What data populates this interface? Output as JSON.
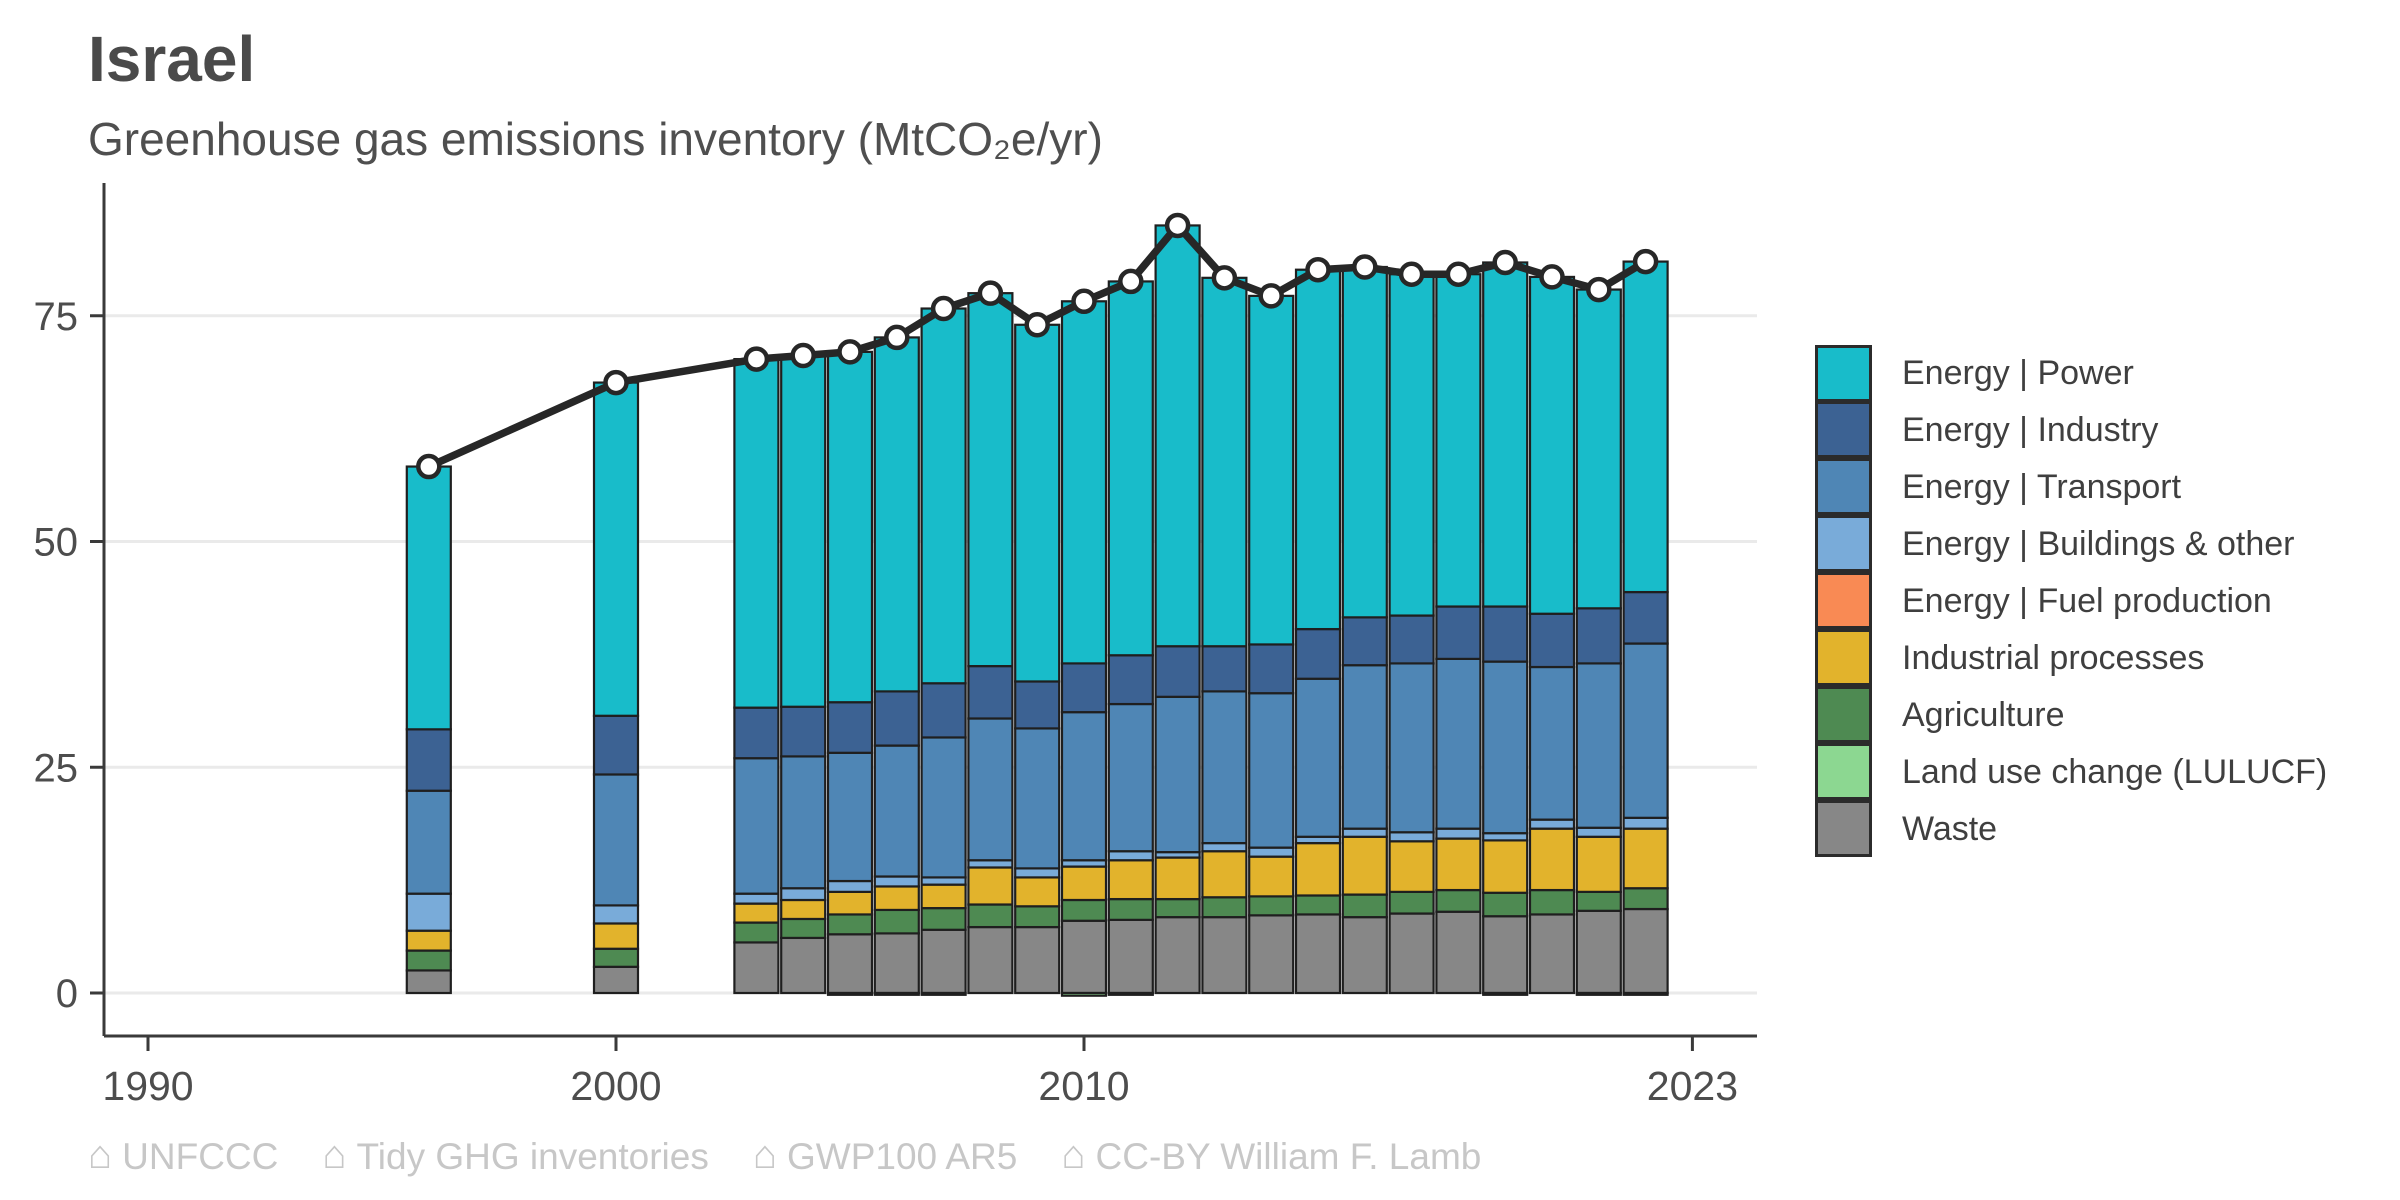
{
  "header": {
    "title": "Israel",
    "subtitle": "Greenhouse gas emissions inventory (MtCO₂e/yr)"
  },
  "chart_data": {
    "type": "bar",
    "subtype": "stacked-bars-with-total-line",
    "title": "Israel",
    "subtitle": "Greenhouse gas emissions inventory (MtCO₂e/yr)",
    "xlabel": "",
    "ylabel": "MtCO₂e/yr",
    "x_ticks": [
      1990,
      2000,
      2010,
      2023
    ],
    "y_ticks": [
      0,
      25,
      50,
      75
    ],
    "xlim": [
      1988.6,
      2024.3
    ],
    "ylim": [
      0,
      90
    ],
    "grid": "horizontal",
    "legend_position": "right",
    "line_color": "#272727",
    "point_fill": "#ffffff",
    "years": [
      1996,
      2000,
      2003,
      2004,
      2005,
      2006,
      2007,
      2008,
      2009,
      2010,
      2011,
      2012,
      2013,
      2014,
      2015,
      2016,
      2017,
      2018,
      2019,
      2020,
      2021,
      2022
    ],
    "series": [
      {
        "name": "Energy | Power",
        "color": "#18bcca",
        "values": [
          29.1,
          36.9,
          38.6,
          38.9,
          38.8,
          39.2,
          41.5,
          41.3,
          39.5,
          40.1,
          41.4,
          46.6,
          40.8,
          38.6,
          39.8,
          38.8,
          37.8,
          36.8,
          38.1,
          37.3,
          35.3,
          36.6
        ]
      },
      {
        "name": "Energy | Industry",
        "color": "#3c6293",
        "values": [
          6.8,
          6.5,
          5.6,
          5.5,
          5.6,
          6.0,
          6.0,
          5.8,
          5.2,
          5.4,
          5.4,
          5.6,
          5.0,
          5.4,
          5.5,
          5.3,
          5.3,
          5.8,
          6.1,
          5.9,
          6.1,
          5.7
        ]
      },
      {
        "name": "Energy | Transport",
        "color": "#4f86b5",
        "values": [
          11.4,
          14.5,
          15.0,
          14.6,
          14.2,
          14.5,
          15.5,
          15.7,
          15.5,
          16.4,
          16.3,
          17.2,
          16.8,
          17.1,
          17.5,
          18.1,
          18.7,
          18.8,
          19.0,
          16.9,
          18.2,
          19.3
        ]
      },
      {
        "name": "Energy | Buildings & other",
        "color": "#79abd9",
        "values": [
          4.1,
          2.0,
          1.1,
          1.3,
          1.2,
          1.1,
          0.8,
          0.8,
          1.0,
          0.7,
          1.0,
          0.6,
          0.9,
          1.0,
          0.7,
          0.9,
          1.0,
          1.1,
          0.8,
          1.0,
          1.0,
          1.2
        ]
      },
      {
        "name": "Energy | Fuel production",
        "color": "#f98a54",
        "values": [
          0,
          0,
          0,
          0,
          0,
          0,
          0,
          0,
          0,
          0,
          0,
          0,
          0,
          0,
          0,
          0,
          0,
          0,
          0,
          0,
          0,
          0
        ]
      },
      {
        "name": "Industrial processes",
        "color": "#e2b32c",
        "values": [
          2.2,
          2.8,
          2.1,
          2.1,
          2.5,
          2.6,
          2.6,
          4.1,
          3.2,
          3.7,
          4.3,
          4.6,
          5.1,
          4.4,
          5.8,
          6.4,
          5.6,
          5.7,
          5.8,
          6.8,
          6.1,
          6.6
        ]
      },
      {
        "name": "Agriculture",
        "color": "#4e8a52",
        "values": [
          2.2,
          2.0,
          2.2,
          2.1,
          2.2,
          2.6,
          2.4,
          2.5,
          2.3,
          2.3,
          2.3,
          2.0,
          2.2,
          2.1,
          2.1,
          2.5,
          2.4,
          2.4,
          2.6,
          2.7,
          2.1,
          2.3
        ]
      },
      {
        "name": "Land use change (LULUCF)",
        "color": "#8cd791",
        "values": [
          0,
          0,
          0,
          0,
          -0.2,
          -0.2,
          -0.2,
          0,
          0,
          -0.3,
          -0.2,
          0,
          0,
          0,
          0,
          0,
          0,
          0,
          -0.2,
          0,
          -0.2,
          -0.2
        ]
      },
      {
        "name": "Waste",
        "color": "#878787",
        "values": [
          2.5,
          2.9,
          5.6,
          6.1,
          6.5,
          6.6,
          7.0,
          7.3,
          7.3,
          8.0,
          8.1,
          8.4,
          8.4,
          8.6,
          8.7,
          8.4,
          8.8,
          9.0,
          8.5,
          8.7,
          9.1,
          9.3
        ]
      }
    ],
    "totals": [
      58.3,
      67.6,
      70.2,
      70.6,
      71.0,
      72.6,
      75.8,
      77.5,
      74.0,
      76.6,
      78.8,
      85.0,
      79.2,
      77.2,
      80.1,
      80.4,
      79.6,
      79.6,
      80.9,
      79.3,
      77.9,
      81.0
    ]
  },
  "footer": {
    "icon": "⌂",
    "items": [
      {
        "label": "UNFCCC"
      },
      {
        "label": "Tidy GHG inventories"
      },
      {
        "label": "GWP100 AR5"
      },
      {
        "label": "CC-BY William F. Lamb"
      }
    ]
  }
}
